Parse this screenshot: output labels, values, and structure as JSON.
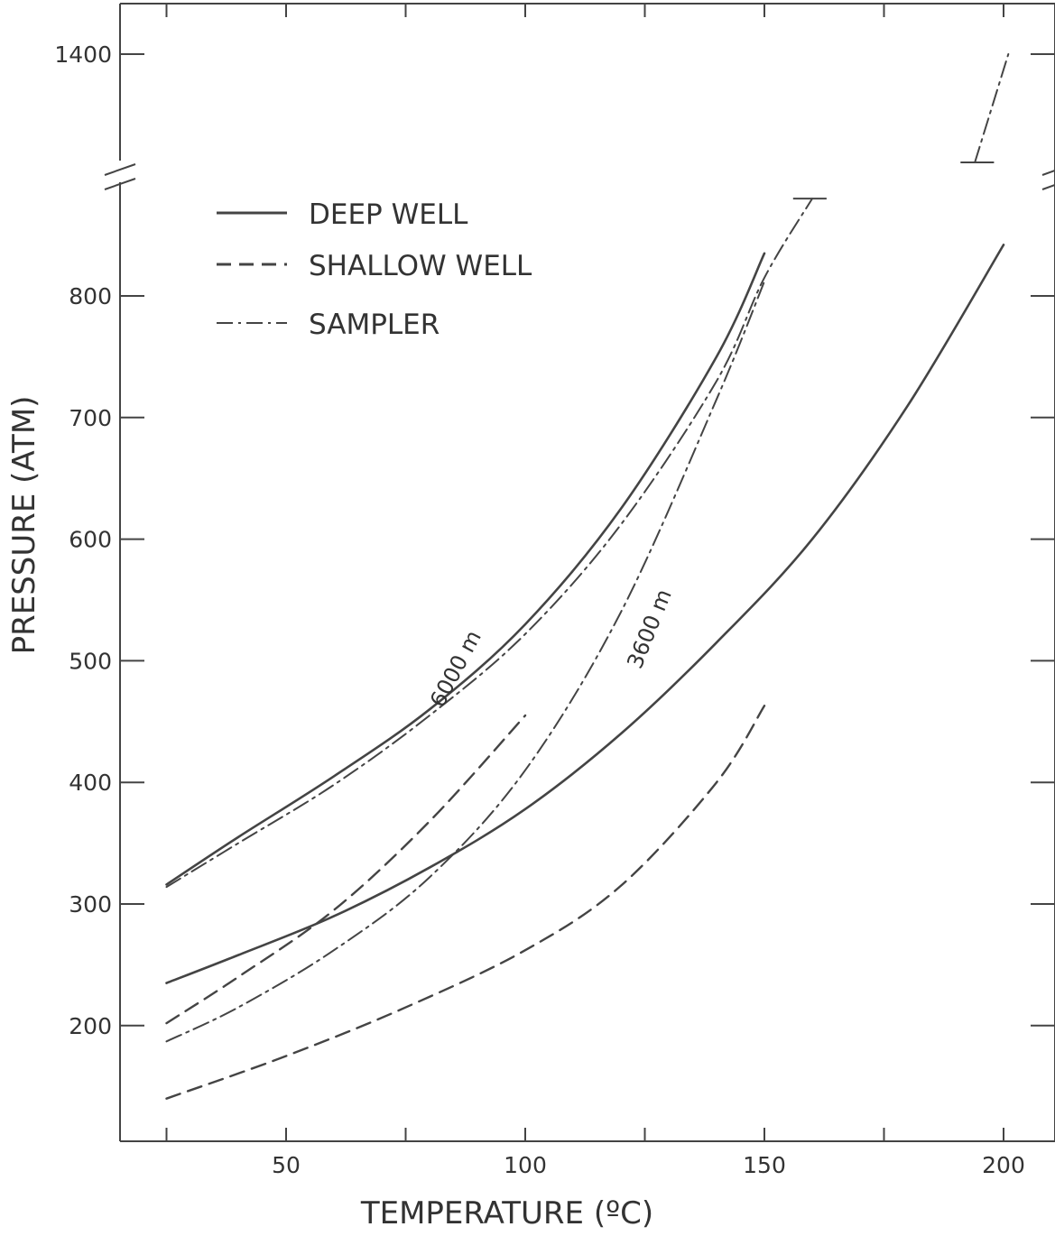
{
  "chart_data": {
    "type": "line",
    "title": "",
    "xlabel": "TEMPERATURE (ºC)",
    "ylabel": "PRESSURE (ATM)",
    "xlim": [
      20,
      212
    ],
    "ylim": [
      100,
      1450
    ],
    "axis_break": {
      "between": [
        880,
        1280
      ]
    },
    "x_ticks": [
      {
        "value": 50,
        "label": "50"
      },
      {
        "value": 100,
        "label": "100"
      },
      {
        "value": 150,
        "label": "150"
      },
      {
        "value": 200,
        "label": "200"
      }
    ],
    "y_ticks": [
      {
        "value": 200,
        "label": "200"
      },
      {
        "value": 300,
        "label": "300"
      },
      {
        "value": 400,
        "label": "400"
      },
      {
        "value": 500,
        "label": "500"
      },
      {
        "value": 600,
        "label": "600"
      },
      {
        "value": 700,
        "label": "700"
      },
      {
        "value": 800,
        "label": "800"
      },
      {
        "value": 1400,
        "label": "1400"
      }
    ],
    "legend": {
      "position": "top-left",
      "entries": [
        {
          "label": "DEEP WELL",
          "style": "solid"
        },
        {
          "label": "SHALLOW WELL",
          "style": "dashed"
        },
        {
          "label": "SAMPLER",
          "style": "dashdot"
        }
      ]
    },
    "annotations": [
      {
        "text": "6000 m",
        "x": 88,
        "y": 440,
        "rotate": -62
      },
      {
        "text": "3600 m",
        "x": 130,
        "y": 510,
        "rotate": -68
      }
    ],
    "series": [
      {
        "style": "solid",
        "x": [
          25,
          40,
          60,
          80,
          100,
          120,
          140,
          150
        ],
        "y": [
          316,
          355,
          405,
          460,
          530,
          625,
          750,
          835
        ]
      },
      {
        "style": "solid",
        "x": [
          25,
          40,
          60,
          80,
          100,
          120,
          140,
          160,
          180,
          200
        ],
        "y": [
          235,
          258,
          290,
          330,
          378,
          440,
          515,
          600,
          710,
          842
        ]
      },
      {
        "style": "dashed",
        "x": [
          25,
          40,
          60,
          80,
          100
        ],
        "y": [
          202,
          240,
          295,
          368,
          455
        ]
      },
      {
        "style": "dashed",
        "x": [
          25,
          50,
          75,
          100,
          120,
          140,
          150
        ],
        "y": [
          140,
          175,
          215,
          262,
          315,
          400,
          463
        ]
      },
      {
        "style": "dashdot",
        "x": [
          25,
          40,
          60,
          80,
          100,
          120,
          140,
          150,
          160
        ],
        "y": [
          314,
          350,
          398,
          455,
          522,
          612,
          730,
          815,
          880
        ]
      },
      {
        "style": "dashdot",
        "x": [
          25,
          40,
          60,
          80,
          100,
          120,
          140,
          150
        ],
        "y": [
          187,
          215,
          262,
          322,
          410,
          540,
          715,
          812
        ]
      },
      {
        "style": "dashdot",
        "x": [
          194,
          201
        ],
        "y": [
          1280,
          1400
        ]
      }
    ]
  }
}
